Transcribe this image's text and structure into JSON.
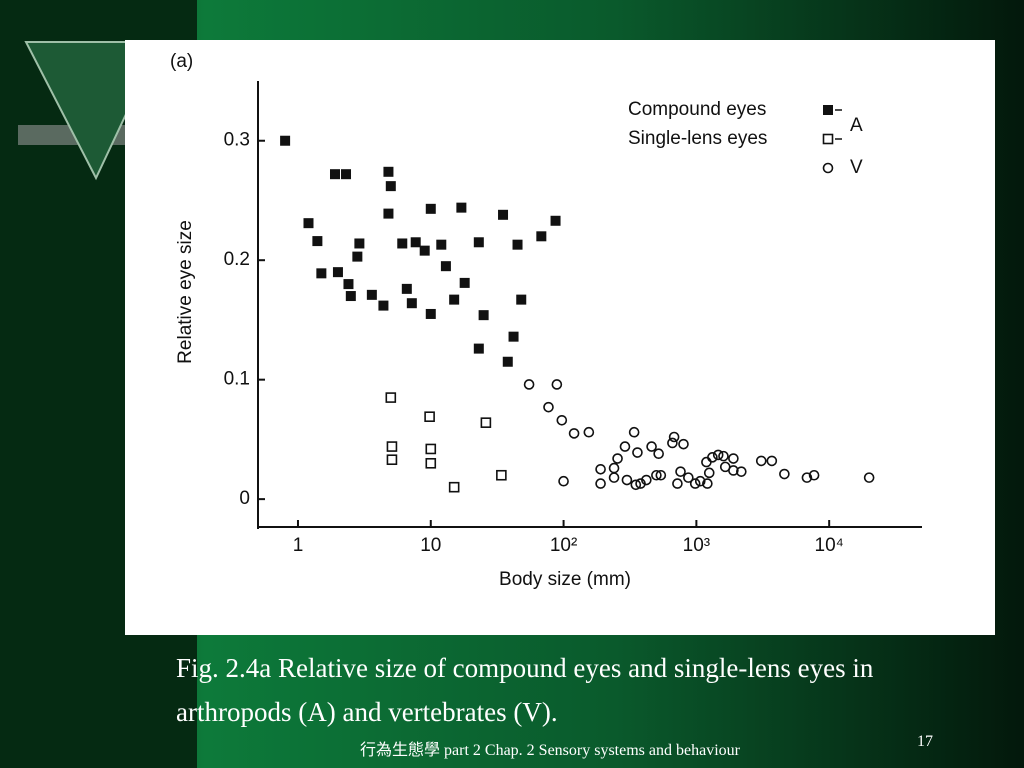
{
  "chart_data": {
    "type": "scatter",
    "panel_label": "(a)",
    "x_label": "Body size (mm)",
    "y_label": "Relative eye size",
    "x_scale": "log",
    "xlim": [
      0.5,
      50000
    ],
    "xticks": [
      {
        "value": 1,
        "label": "1"
      },
      {
        "value": 10,
        "label": "10"
      },
      {
        "value": 100,
        "label": "10²"
      },
      {
        "value": 1000,
        "label": "10³"
      },
      {
        "value": 10000,
        "label": "10⁴"
      }
    ],
    "ylim": [
      -0.025,
      0.35
    ],
    "yticks": [
      0,
      0.1,
      0.2,
      0.3
    ],
    "legend_group": "A",
    "series": [
      {
        "name": "Compound eyes",
        "color": "#111111",
        "marker": "filled-square",
        "x": [
          0.8,
          1.2,
          1.4,
          1.5,
          1.9,
          2.3,
          2.0,
          2.4,
          2.5,
          2.9,
          2.8,
          3.6,
          4.4,
          4.8,
          5.0,
          4.8,
          6.1,
          6.6,
          7.2,
          7.7,
          9.0,
          10,
          10,
          12,
          13,
          15,
          17,
          18,
          25,
          23,
          23,
          35,
          38,
          42,
          45,
          48,
          68,
          87
        ],
        "values": [
          0.3,
          0.231,
          0.216,
          0.189,
          0.272,
          0.272,
          0.19,
          0.18,
          0.17,
          0.214,
          0.203,
          0.171,
          0.162,
          0.274,
          0.262,
          0.239,
          0.214,
          0.176,
          0.164,
          0.215,
          0.208,
          0.243,
          0.155,
          0.213,
          0.195,
          0.167,
          0.244,
          0.181,
          0.154,
          0.215,
          0.126,
          0.238,
          0.115,
          0.136,
          0.213,
          0.167,
          0.22,
          0.233
        ]
      },
      {
        "name": "Single-lens eyes",
        "color": "#111111",
        "marker": "open-square",
        "x": [
          5.0,
          5.1,
          5.1,
          9.8,
          10,
          10,
          15,
          26,
          34
        ],
        "values": [
          0.085,
          0.044,
          0.033,
          0.069,
          0.042,
          0.03,
          0.01,
          0.064,
          0.02
        ]
      },
      {
        "name": "V",
        "color": "#111111",
        "marker": "circle",
        "x": [
          55,
          89,
          77,
          97,
          120,
          155,
          100,
          190,
          190,
          240,
          240,
          255,
          290,
          300,
          340,
          360,
          350,
          380,
          420,
          460,
          500,
          520,
          540,
          660,
          680,
          720,
          760,
          800,
          870,
          980,
          1070,
          1190,
          1210,
          1250,
          1320,
          1460,
          1600,
          1650,
          1900,
          1900,
          2180,
          3080,
          3700,
          4600,
          6800,
          7700,
          20000
        ],
        "values": [
          0.096,
          0.096,
          0.077,
          0.066,
          0.055,
          0.056,
          0.015,
          0.025,
          0.013,
          0.026,
          0.018,
          0.034,
          0.044,
          0.016,
          0.056,
          0.039,
          0.012,
          0.013,
          0.016,
          0.044,
          0.02,
          0.038,
          0.02,
          0.047,
          0.052,
          0.013,
          0.023,
          0.046,
          0.018,
          0.013,
          0.015,
          0.031,
          0.013,
          0.022,
          0.035,
          0.037,
          0.036,
          0.027,
          0.034,
          0.024,
          0.023,
          0.032,
          0.032,
          0.021,
          0.018,
          0.02,
          0.018
        ]
      }
    ]
  },
  "slide": {
    "caption": "Fig. 2.4a Relative size of compound eyes and single-lens eyes in arthropods (A) and vertebrates (V).",
    "footer": "行為生態學 part 2 Chap. 2 Sensory systems and behaviour",
    "page_number": "17"
  }
}
